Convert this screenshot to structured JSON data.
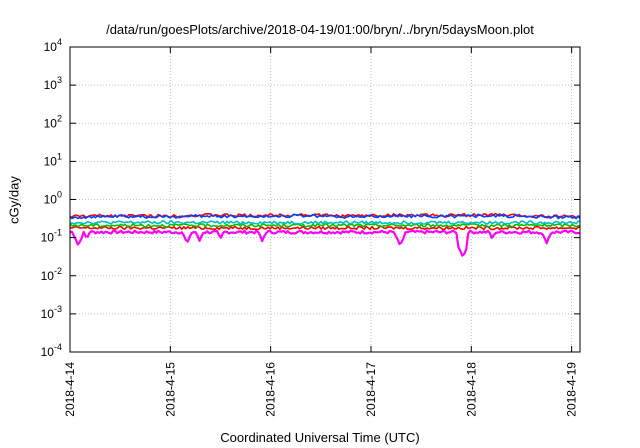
{
  "chart_data": {
    "type": "line",
    "title": "/data/run/goesPlots/archive/2018-04-19/01:00/bryn/../bryn/5daysMoon.plot",
    "xlabel": "Coordinated Universal Time (UTC)",
    "ylabel": "cGy/day",
    "yscale": "log",
    "ylim": [
      0.0001,
      10000
    ],
    "y_ticks": [
      {
        "value": 0.0001,
        "base": "10",
        "exp": "-4"
      },
      {
        "value": 0.001,
        "base": "10",
        "exp": "-3"
      },
      {
        "value": 0.01,
        "base": "10",
        "exp": "-2"
      },
      {
        "value": 0.1,
        "base": "10",
        "exp": "-1"
      },
      {
        "value": 1,
        "base": "10",
        "exp": "0"
      },
      {
        "value": 10,
        "base": "10",
        "exp": "1"
      },
      {
        "value": 100,
        "base": "10",
        "exp": "2"
      },
      {
        "value": 1000,
        "base": "10",
        "exp": "3"
      },
      {
        "value": 10000,
        "base": "10",
        "exp": "4"
      }
    ],
    "xlim": [
      "2018-04-14",
      "2018-04-19 02:00"
    ],
    "x_ticks": [
      "2018-4-14",
      "2018-4-15",
      "2018-4-16",
      "2018-4-17",
      "2018-4-18",
      "2018-4-19"
    ],
    "grid": true,
    "x": [
      "2018-04-14 00:00",
      "2018-04-14 12:00",
      "2018-04-15 00:00",
      "2018-04-15 12:00",
      "2018-04-16 00:00",
      "2018-04-16 12:00",
      "2018-04-17 00:00",
      "2018-04-17 12:00",
      "2018-04-18 00:00",
      "2018-04-18 12:00",
      "2018-04-19 00:00",
      "2018-04-19 02:00"
    ],
    "series": [
      {
        "color": "#ff00ff",
        "values": [
          0.14,
          0.14,
          0.14,
          0.14,
          0.14,
          0.14,
          0.14,
          0.14,
          0.14,
          0.14,
          0.14,
          0.14
        ],
        "dips": [
          {
            "x": "2018-04-14 02:00",
            "value": 0.06
          },
          {
            "x": "2018-04-14 04:00",
            "value": 0.09
          },
          {
            "x": "2018-04-15 04:00",
            "value": 0.07
          },
          {
            "x": "2018-04-15 07:00",
            "value": 0.08
          },
          {
            "x": "2018-04-15 12:00",
            "value": 0.09
          },
          {
            "x": "2018-04-15 22:00",
            "value": 0.08
          },
          {
            "x": "2018-04-17 07:00",
            "value": 0.06
          },
          {
            "x": "2018-04-17 22:00",
            "value": 0.03
          },
          {
            "x": "2018-04-18 05:00",
            "value": 0.09
          },
          {
            "x": "2018-04-18 18:00",
            "value": 0.07
          }
        ]
      },
      {
        "color": "#ff0000",
        "values": [
          0.18,
          0.18,
          0.18,
          0.18,
          0.18,
          0.18,
          0.18,
          0.18,
          0.18,
          0.18,
          0.18,
          0.18
        ]
      },
      {
        "color": "#00c000",
        "values": [
          0.21,
          0.21,
          0.21,
          0.21,
          0.21,
          0.21,
          0.21,
          0.21,
          0.21,
          0.21,
          0.21,
          0.21
        ]
      },
      {
        "color": "#00c0c0",
        "values": [
          0.25,
          0.25,
          0.25,
          0.25,
          0.25,
          0.25,
          0.25,
          0.25,
          0.25,
          0.25,
          0.25,
          0.25
        ]
      },
      {
        "color": "#ff0000",
        "values": [
          0.36,
          0.38,
          0.37,
          0.39,
          0.38,
          0.4,
          0.37,
          0.39,
          0.38,
          0.4,
          0.37,
          0.36
        ]
      },
      {
        "color": "#0040ff",
        "values": [
          0.34,
          0.36,
          0.35,
          0.37,
          0.36,
          0.38,
          0.35,
          0.37,
          0.36,
          0.38,
          0.35,
          0.34
        ]
      }
    ]
  }
}
